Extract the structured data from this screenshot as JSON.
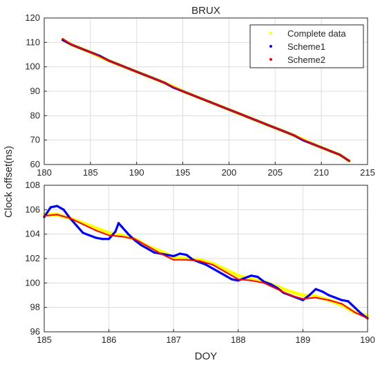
{
  "figure": {
    "ylabel": "Clock offset(ns)",
    "xlabel": "DOY"
  },
  "colors": {
    "complete": "#ffff00",
    "scheme1": "#0000ff",
    "scheme2": "#ff0000",
    "grid": "#dcdcdc",
    "axis": "#262626"
  },
  "chart_data": [
    {
      "type": "scatter",
      "title": "BRUX",
      "xlim": [
        180,
        215
      ],
      "ylim": [
        60,
        120
      ],
      "xticks": [
        180,
        185,
        190,
        195,
        200,
        205,
        210,
        215
      ],
      "yticks": [
        60,
        70,
        80,
        90,
        100,
        110,
        120
      ],
      "grid": true,
      "legend": {
        "placement": "top-right",
        "entries": [
          "Complete data",
          "Scheme1",
          "Scheme2"
        ]
      },
      "series": [
        {
          "name": "Complete data",
          "color": "yellow",
          "x": [
            182,
            183,
            185,
            187,
            189,
            191,
            193,
            195,
            197,
            199,
            201,
            203,
            205,
            207,
            209,
            211,
            212,
            213
          ],
          "y": [
            111.0,
            109.0,
            106.0,
            102.5,
            99.5,
            96.5,
            93.5,
            90.0,
            87.0,
            84.0,
            81.0,
            78.0,
            75.0,
            72.0,
            68.5,
            65.5,
            64.0,
            61.5
          ]
        },
        {
          "name": "Scheme1",
          "color": "blue",
          "x": [
            182,
            182.5,
            183,
            184,
            185,
            186,
            187,
            188,
            189,
            190,
            191,
            192,
            193,
            194,
            195,
            196,
            197,
            198,
            199,
            200,
            201,
            202,
            203,
            204,
            205,
            206,
            207,
            208,
            209,
            210,
            211,
            212,
            213
          ],
          "y": [
            111.0,
            110.0,
            109.0,
            107.5,
            106.0,
            104.5,
            102.5,
            101.0,
            99.5,
            98.0,
            96.5,
            95.0,
            93.5,
            91.5,
            90.0,
            88.5,
            87.0,
            85.5,
            84.0,
            82.5,
            81.0,
            79.5,
            78.0,
            76.5,
            75.0,
            73.5,
            72.0,
            70.0,
            68.5,
            67.0,
            65.5,
            64.0,
            61.5
          ]
        },
        {
          "name": "Scheme2",
          "color": "red",
          "x": [
            182,
            183,
            185,
            187,
            189,
            191,
            193,
            195,
            197,
            199,
            201,
            203,
            205,
            207,
            209,
            211,
            212,
            213
          ],
          "y": [
            111.5,
            109.0,
            106.0,
            102.5,
            99.5,
            96.5,
            93.5,
            90.0,
            87.0,
            84.0,
            81.0,
            78.0,
            75.0,
            72.0,
            68.5,
            65.5,
            64.0,
            61.5
          ]
        }
      ]
    },
    {
      "type": "scatter",
      "xlim": [
        185,
        190
      ],
      "ylim": [
        96,
        108
      ],
      "xticks": [
        185,
        186,
        187,
        188,
        189,
        190
      ],
      "yticks": [
        96,
        98,
        100,
        102,
        104,
        106,
        108
      ],
      "grid": true,
      "series": [
        {
          "name": "Complete data",
          "color": "yellow",
          "x": [
            185.0,
            185.2,
            185.4,
            185.6,
            185.8,
            186.0,
            186.2,
            186.4,
            186.6,
            186.8,
            187.0,
            187.2,
            187.4,
            187.6,
            187.8,
            188.0,
            188.2,
            188.4,
            188.6,
            188.8,
            189.0,
            189.2,
            189.4,
            189.6,
            189.8,
            190.0
          ],
          "y": [
            105.6,
            105.6,
            105.3,
            104.9,
            104.5,
            104.1,
            103.9,
            103.6,
            103.0,
            102.6,
            102.1,
            102.0,
            101.9,
            101.6,
            101.1,
            100.6,
            100.3,
            100.1,
            99.7,
            99.3,
            99.0,
            98.9,
            98.6,
            98.2,
            97.6,
            97.3
          ]
        },
        {
          "name": "Scheme1",
          "color": "blue",
          "x": [
            185.0,
            185.1,
            185.2,
            185.3,
            185.4,
            185.5,
            185.6,
            185.8,
            185.9,
            186.0,
            186.1,
            186.15,
            186.2,
            186.3,
            186.4,
            186.5,
            186.6,
            186.7,
            186.8,
            186.9,
            187.0,
            187.1,
            187.2,
            187.3,
            187.4,
            187.5,
            187.6,
            187.8,
            187.9,
            188.0,
            188.1,
            188.2,
            188.3,
            188.4,
            188.5,
            188.6,
            188.7,
            188.8,
            188.9,
            189.0,
            189.1,
            189.2,
            189.3,
            189.4,
            189.5,
            189.6,
            189.7,
            189.8,
            189.9,
            190.0
          ],
          "y": [
            105.4,
            106.2,
            106.3,
            106.0,
            105.3,
            104.7,
            104.1,
            103.7,
            103.6,
            103.6,
            104.2,
            104.9,
            104.6,
            104.0,
            103.5,
            103.1,
            102.8,
            102.5,
            102.4,
            102.3,
            102.2,
            102.4,
            102.3,
            101.9,
            101.7,
            101.5,
            101.2,
            100.6,
            100.3,
            100.2,
            100.4,
            100.6,
            100.5,
            100.1,
            99.9,
            99.6,
            99.2,
            99.0,
            98.8,
            98.6,
            99.0,
            99.5,
            99.3,
            99.0,
            98.8,
            98.6,
            98.5,
            98.0,
            97.5,
            97.1
          ]
        },
        {
          "name": "Scheme2",
          "color": "red",
          "x": [
            185.0,
            185.2,
            185.4,
            185.6,
            185.8,
            186.0,
            186.2,
            186.4,
            186.6,
            186.8,
            187.0,
            187.2,
            187.4,
            187.6,
            187.8,
            188.0,
            188.2,
            188.4,
            188.6,
            188.8,
            189.0,
            189.2,
            189.4,
            189.6,
            189.8,
            190.0
          ],
          "y": [
            105.5,
            105.6,
            105.3,
            104.8,
            104.3,
            103.9,
            103.8,
            103.6,
            103.0,
            102.4,
            101.9,
            101.9,
            101.8,
            101.5,
            100.9,
            100.3,
            100.2,
            100.0,
            99.5,
            99.0,
            98.7,
            98.8,
            98.6,
            98.3,
            97.6,
            97.1
          ]
        }
      ]
    }
  ]
}
